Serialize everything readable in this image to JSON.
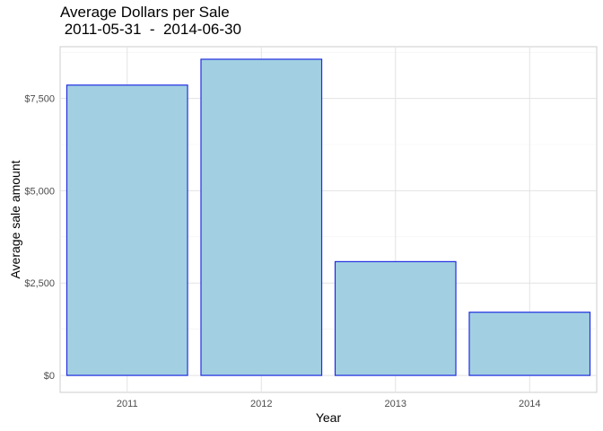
{
  "chart_data": {
    "type": "bar",
    "title": "Average Dollars per Sale",
    "subtitle": " 2011-05-31  -  2014-06-30",
    "xlabel": "Year",
    "ylabel": "Average sale amount",
    "categories": [
      "2011",
      "2012",
      "2013",
      "2014"
    ],
    "values": [
      7860,
      8560,
      3080,
      1710
    ],
    "ylim": [
      -460,
      8900
    ],
    "yticks": [
      0,
      2500,
      5000,
      7500
    ],
    "ytick_labels": [
      "$0",
      "$2,500",
      "$5,000",
      "$7,500"
    ],
    "grid": true,
    "legend": "none",
    "colors": {
      "bar_fill": "#a2d0e2",
      "bar_stroke": "#1f2ee0",
      "grid_major": "#e3e3e3",
      "grid_minor": "#f1f1f1",
      "panel_border": "#cccccc",
      "tick_text": "#4d4d4d",
      "label_text": "#000000"
    }
  }
}
